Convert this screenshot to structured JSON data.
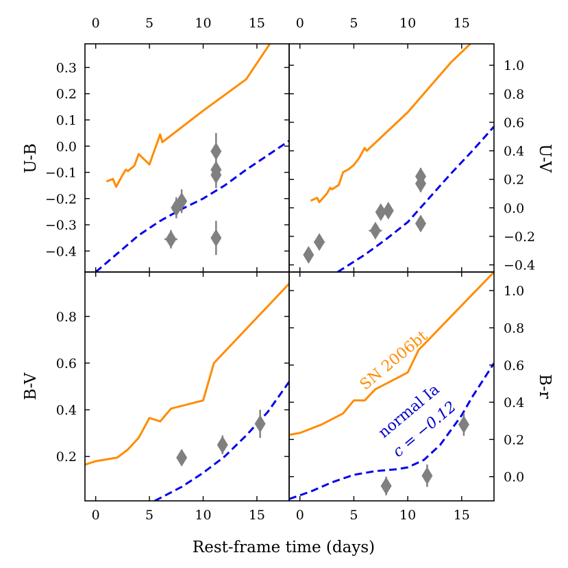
{
  "figure": {
    "xlabel": "Rest-frame time (days)"
  },
  "chart_data": [
    {
      "type": "line",
      "panel": "top-left",
      "ylabel": "U-B",
      "ylabel_side": "left",
      "xlim": [
        -1,
        18
      ],
      "ylim": [
        -0.48,
        0.39
      ],
      "xticks": [
        0,
        5,
        10,
        15
      ],
      "xtick_labels": [
        "0",
        "5",
        "10",
        "15"
      ],
      "xtick_labels_side": "top",
      "yticks": [
        -0.4,
        -0.3,
        -0.2,
        -0.1,
        0.0,
        0.1,
        0.2,
        0.3
      ],
      "ytick_labels": [
        "−0.4",
        "−0.3",
        "−0.2",
        "−0.1",
        "0.0",
        "0.1",
        "0.2",
        "0.3"
      ],
      "series": [
        {
          "name": "SN 2006bt",
          "style": "solid",
          "color": "#ff8c00",
          "x": [
            1.0,
            1.6,
            1.9,
            2.5,
            2.8,
            3.0,
            3.6,
            4.0,
            4.5,
            5.0,
            5.3,
            6.0,
            6.2,
            10,
            14,
            16.2
          ],
          "y": [
            -0.135,
            -0.125,
            -0.155,
            -0.11,
            -0.09,
            -0.095,
            -0.075,
            -0.03,
            -0.05,
            -0.07,
            -0.035,
            0.045,
            0.015,
            0.135,
            0.255,
            0.39
          ]
        },
        {
          "name": "normal Ia",
          "style": "dashed",
          "color": "#0000ee",
          "x": [
            0,
            2,
            4,
            6,
            8,
            10,
            12,
            14,
            16,
            18
          ],
          "y": [
            -0.48,
            -0.41,
            -0.34,
            -0.285,
            -0.24,
            -0.2,
            -0.15,
            -0.09,
            -0.035,
            0.02
          ]
        }
      ],
      "points": [
        {
          "x": 7.0,
          "y": -0.355,
          "xerr": 0.6,
          "yerr": 0.035
        },
        {
          "x": 7.5,
          "y": -0.235,
          "xerr": 0.3,
          "yerr": 0.04
        },
        {
          "x": 8.0,
          "y": -0.21,
          "xerr": 0.3,
          "yerr": 0.045
        },
        {
          "x": 11.2,
          "y": -0.02,
          "xerr": 0.2,
          "yerr": 0.07
        },
        {
          "x": 11.2,
          "y": -0.09,
          "xerr": 0.2,
          "yerr": 0.04
        },
        {
          "x": 11.2,
          "y": -0.11,
          "xerr": 0.2,
          "yerr": 0.05
        },
        {
          "x": 11.2,
          "y": -0.35,
          "xerr": 0.2,
          "yerr": 0.065
        }
      ]
    },
    {
      "type": "line",
      "panel": "top-right",
      "ylabel": "U-V",
      "ylabel_side": "right",
      "xlim": [
        -1,
        18
      ],
      "ylim": [
        -0.45,
        1.15
      ],
      "xticks": [
        0,
        5,
        10,
        15
      ],
      "xtick_labels": [
        "0",
        "5",
        "10",
        "15"
      ],
      "xtick_labels_side": "top",
      "yticks": [
        -0.4,
        -0.2,
        0.0,
        0.2,
        0.4,
        0.6,
        0.8,
        1.0
      ],
      "ytick_labels": [
        "−0.4",
        "−0.2",
        "0.0",
        "0.2",
        "0.4",
        "0.6",
        "0.8",
        "1.0"
      ],
      "series": [
        {
          "name": "SN 2006bt",
          "style": "solid",
          "color": "#ff8c00",
          "x": [
            1.0,
            1.6,
            1.8,
            2.5,
            2.8,
            3.0,
            3.6,
            4.0,
            4.5,
            5.0,
            5.5,
            6.0,
            6.2,
            10,
            14,
            15.8
          ],
          "y": [
            0.05,
            0.07,
            0.04,
            0.1,
            0.14,
            0.13,
            0.16,
            0.25,
            0.27,
            0.3,
            0.35,
            0.42,
            0.4,
            0.67,
            1.02,
            1.15
          ]
        },
        {
          "name": "normal Ia",
          "style": "dashed",
          "color": "#0000ee",
          "x": [
            3.5,
            6,
            8,
            10,
            12,
            14,
            16,
            18
          ],
          "y": [
            -0.45,
            -0.33,
            -0.22,
            -0.1,
            0.07,
            0.24,
            0.4,
            0.57
          ]
        }
      ],
      "points": [
        {
          "x": 0.8,
          "y": -0.33,
          "xerr": 0.3,
          "yerr": 0.05
        },
        {
          "x": 1.8,
          "y": -0.24,
          "xerr": 0.5,
          "yerr": 0.04
        },
        {
          "x": 7.0,
          "y": -0.16,
          "xerr": 0.6,
          "yerr": 0.04
        },
        {
          "x": 7.5,
          "y": -0.03,
          "xerr": 0.3,
          "yerr": 0.05
        },
        {
          "x": 8.2,
          "y": -0.02,
          "xerr": 0.3,
          "yerr": 0.05
        },
        {
          "x": 11.2,
          "y": 0.22,
          "xerr": 0.2,
          "yerr": 0.06
        },
        {
          "x": 11.2,
          "y": 0.17,
          "xerr": 0.2,
          "yerr": 0.06
        },
        {
          "x": 11.2,
          "y": -0.11,
          "xerr": 0.2,
          "yerr": 0.04
        }
      ]
    },
    {
      "type": "line",
      "panel": "bottom-left",
      "ylabel": "B-V",
      "ylabel_side": "left",
      "xlim": [
        -1,
        18
      ],
      "ylim": [
        0.01,
        0.99
      ],
      "xticks": [
        0,
        5,
        10,
        15
      ],
      "xtick_labels": [
        "0",
        "5",
        "10",
        "15"
      ],
      "xtick_labels_side": "bottom",
      "yticks": [
        0.2,
        0.4,
        0.6,
        0.8
      ],
      "ytick_labels": [
        "0.2",
        "0.4",
        "0.6",
        "0.8"
      ],
      "series": [
        {
          "name": "SN 2006bt",
          "style": "solid",
          "color": "#ff8c00",
          "x": [
            -1,
            0,
            2,
            3,
            4,
            5,
            6,
            7,
            10,
            11,
            18
          ],
          "y": [
            0.165,
            0.18,
            0.195,
            0.23,
            0.28,
            0.365,
            0.35,
            0.405,
            0.44,
            0.6,
            0.94
          ]
        },
        {
          "name": "normal Ia",
          "style": "dashed",
          "color": "#0000ee",
          "x": [
            5.5,
            8,
            10,
            12,
            14,
            16,
            18
          ],
          "y": [
            0.01,
            0.07,
            0.13,
            0.2,
            0.29,
            0.39,
            0.52
          ]
        }
      ],
      "points": [
        {
          "x": 8.0,
          "y": 0.195,
          "xerr": 0.3,
          "yerr": 0.03
        },
        {
          "x": 11.8,
          "y": 0.25,
          "xerr": 0.3,
          "yerr": 0.04
        },
        {
          "x": 15.3,
          "y": 0.34,
          "xerr": 0.3,
          "yerr": 0.06
        }
      ]
    },
    {
      "type": "line",
      "panel": "bottom-right",
      "ylabel": "B-r",
      "ylabel_side": "right",
      "xlim": [
        -1,
        18
      ],
      "ylim": [
        -0.13,
        1.1
      ],
      "xticks": [
        0,
        5,
        10,
        15
      ],
      "xtick_labels": [
        "0",
        "5",
        "10",
        "15"
      ],
      "xtick_labels_side": "bottom",
      "yticks": [
        0.0,
        0.2,
        0.4,
        0.6,
        0.8,
        1.0
      ],
      "ytick_labels": [
        "0.0",
        "0.2",
        "0.4",
        "0.6",
        "0.8",
        "1.0"
      ],
      "series": [
        {
          "name": "SN 2006bt",
          "style": "solid",
          "color": "#ff8c00",
          "x": [
            -1,
            0,
            2,
            4,
            5,
            6,
            7,
            9,
            10,
            11,
            18
          ],
          "y": [
            0.225,
            0.235,
            0.28,
            0.34,
            0.41,
            0.41,
            0.47,
            0.53,
            0.56,
            0.68,
            1.1
          ]
        },
        {
          "name": "normal Ia",
          "style": "dashed",
          "color": "#0000ee",
          "x": [
            -1,
            1,
            3,
            5,
            7,
            9,
            10,
            11.5,
            13,
            14,
            15,
            16,
            18
          ],
          "y": [
            -0.12,
            -0.08,
            -0.03,
            0.01,
            0.03,
            0.04,
            0.05,
            0.09,
            0.17,
            0.25,
            0.33,
            0.43,
            0.61
          ]
        }
      ],
      "points": [
        {
          "x": 8.0,
          "y": -0.05,
          "xerr": 0.3,
          "yerr": 0.05
        },
        {
          "x": 11.8,
          "y": 0.005,
          "xerr": 0.3,
          "yerr": 0.06
        },
        {
          "x": 15.2,
          "y": 0.28,
          "xerr": 0.3,
          "yerr": 0.06
        }
      ],
      "annotations": [
        {
          "text": "SN 2006bt",
          "color": "#ff8c00",
          "rotation": -40
        },
        {
          "text": "normal Ia",
          "color": "#0000cc",
          "rotation": -40
        },
        {
          "text": "c = −0.12",
          "color": "#0000cc",
          "rotation": -40,
          "italic_prefix": "c"
        }
      ]
    }
  ]
}
